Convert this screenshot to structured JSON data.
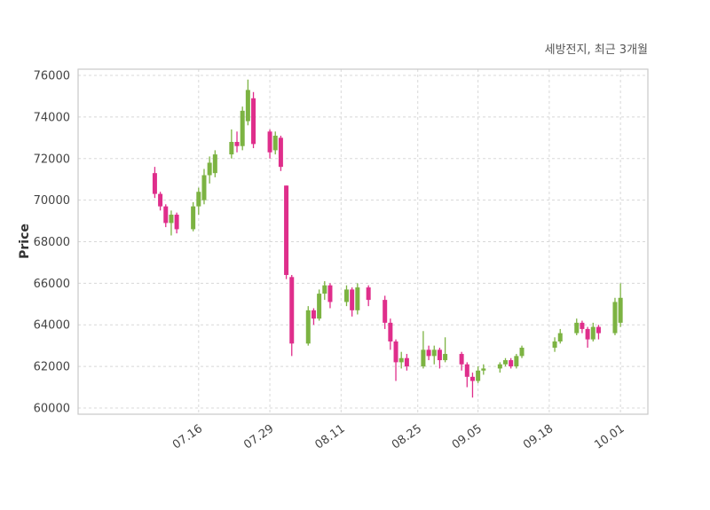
{
  "chart_data": {
    "type": "candlestick",
    "title": "세방전지, 최근 3개월",
    "ylabel": "Price",
    "ylim": [
      59700,
      76300
    ],
    "y_ticks": [
      60000,
      62000,
      64000,
      66000,
      68000,
      70000,
      72000,
      74000,
      76000
    ],
    "x_ticks": [
      "07.16",
      "07.29",
      "08.11",
      "08.25",
      "09.05",
      "09.18",
      "10.01"
    ],
    "x_axis": {
      "start": "06.24",
      "end": "10.06"
    },
    "grid": true,
    "grid_style": "dashed",
    "legend": "none",
    "colors": {
      "up": "#7cb342",
      "down": "#df2e8b",
      "grid": "#d8d8d8",
      "spine": "#c9c9c9",
      "tick_text": "#444444",
      "title_text": "#555555",
      "background": "#ffffff"
    },
    "columns": [
      "date",
      "open",
      "high",
      "low",
      "close"
    ],
    "candles": [
      [
        "07.08",
        71300,
        71600,
        70100,
        70300
      ],
      [
        "07.09",
        70300,
        70400,
        69500,
        69700
      ],
      [
        "07.10",
        69700,
        69800,
        68700,
        68900
      ],
      [
        "07.11",
        68900,
        69500,
        68300,
        69300
      ],
      [
        "07.12",
        69300,
        69400,
        68400,
        68600
      ],
      [
        "07.15",
        68600,
        69900,
        68500,
        69700
      ],
      [
        "07.16",
        69700,
        70600,
        69300,
        70400
      ],
      [
        "07.17",
        70000,
        71500,
        69800,
        71200
      ],
      [
        "07.18",
        71200,
        72100,
        70800,
        71800
      ],
      [
        "07.19",
        71300,
        72400,
        71100,
        72200
      ],
      [
        "07.22",
        72200,
        73400,
        72000,
        72800
      ],
      [
        "07.23",
        72800,
        73300,
        72300,
        72600
      ],
      [
        "07.24",
        72600,
        74500,
        72400,
        74300
      ],
      [
        "07.25",
        73800,
        75800,
        73600,
        75300
      ],
      [
        "07.26",
        74900,
        75200,
        72500,
        72700
      ],
      [
        "07.29",
        73300,
        73400,
        72000,
        72300
      ],
      [
        "07.30",
        72400,
        73300,
        72200,
        73100
      ],
      [
        "07.31",
        73000,
        73100,
        71400,
        71600
      ],
      [
        "08.01",
        70700,
        70700,
        66200,
        66400
      ],
      [
        "08.02",
        66300,
        66400,
        62500,
        63100
      ],
      [
        "08.05",
        63100,
        64900,
        63000,
        64700
      ],
      [
        "08.06",
        64700,
        64800,
        64000,
        64300
      ],
      [
        "08.07",
        64300,
        65700,
        64200,
        65500
      ],
      [
        "08.08",
        65500,
        66100,
        65200,
        65900
      ],
      [
        "08.09",
        65900,
        66000,
        64800,
        65100
      ],
      [
        "08.12",
        65100,
        65900,
        64900,
        65700
      ],
      [
        "08.13",
        65700,
        65800,
        64400,
        64700
      ],
      [
        "08.14",
        64700,
        66000,
        64500,
        65800
      ],
      [
        "08.16",
        65800,
        65900,
        64900,
        65200
      ],
      [
        "08.19",
        65200,
        65400,
        63800,
        64100
      ],
      [
        "08.20",
        64100,
        64300,
        62800,
        63200
      ],
      [
        "08.21",
        63200,
        63300,
        61300,
        62200
      ],
      [
        "08.22",
        62200,
        62700,
        61900,
        62400
      ],
      [
        "08.23",
        62400,
        62600,
        61800,
        62000
      ],
      [
        "08.26",
        62000,
        63700,
        61900,
        62800
      ],
      [
        "08.27",
        62800,
        63000,
        62300,
        62500
      ],
      [
        "08.28",
        62500,
        63000,
        62100,
        62800
      ],
      [
        "08.29",
        62800,
        62900,
        61900,
        62300
      ],
      [
        "08.30",
        62300,
        63400,
        62200,
        62600
      ],
      [
        "09.02",
        62600,
        62700,
        61800,
        62100
      ],
      [
        "09.03",
        62100,
        62200,
        61000,
        61500
      ],
      [
        "09.04",
        61500,
        61700,
        60500,
        61300
      ],
      [
        "09.05",
        61300,
        62000,
        61200,
        61800
      ],
      [
        "09.06",
        61800,
        62100,
        61600,
        61900
      ],
      [
        "09.09",
        61900,
        62200,
        61700,
        62100
      ],
      [
        "09.10",
        62100,
        62400,
        62000,
        62300
      ],
      [
        "09.11",
        62300,
        62400,
        61900,
        62000
      ],
      [
        "09.12",
        62000,
        62600,
        61900,
        62500
      ],
      [
        "09.13",
        62500,
        63000,
        62400,
        62900
      ],
      [
        "09.19",
        62900,
        63400,
        62700,
        63200
      ],
      [
        "09.20",
        63200,
        63800,
        63100,
        63600
      ],
      [
        "09.23",
        63600,
        64300,
        63500,
        64100
      ],
      [
        "09.24",
        64100,
        64200,
        63600,
        63800
      ],
      [
        "09.25",
        63800,
        63900,
        62900,
        63300
      ],
      [
        "09.26",
        63300,
        64100,
        63200,
        63900
      ],
      [
        "09.27",
        63900,
        64000,
        63300,
        63600
      ],
      [
        "09.30",
        63600,
        65300,
        63500,
        65100
      ],
      [
        "10.01",
        64100,
        66000,
        63900,
        65300
      ]
    ]
  }
}
